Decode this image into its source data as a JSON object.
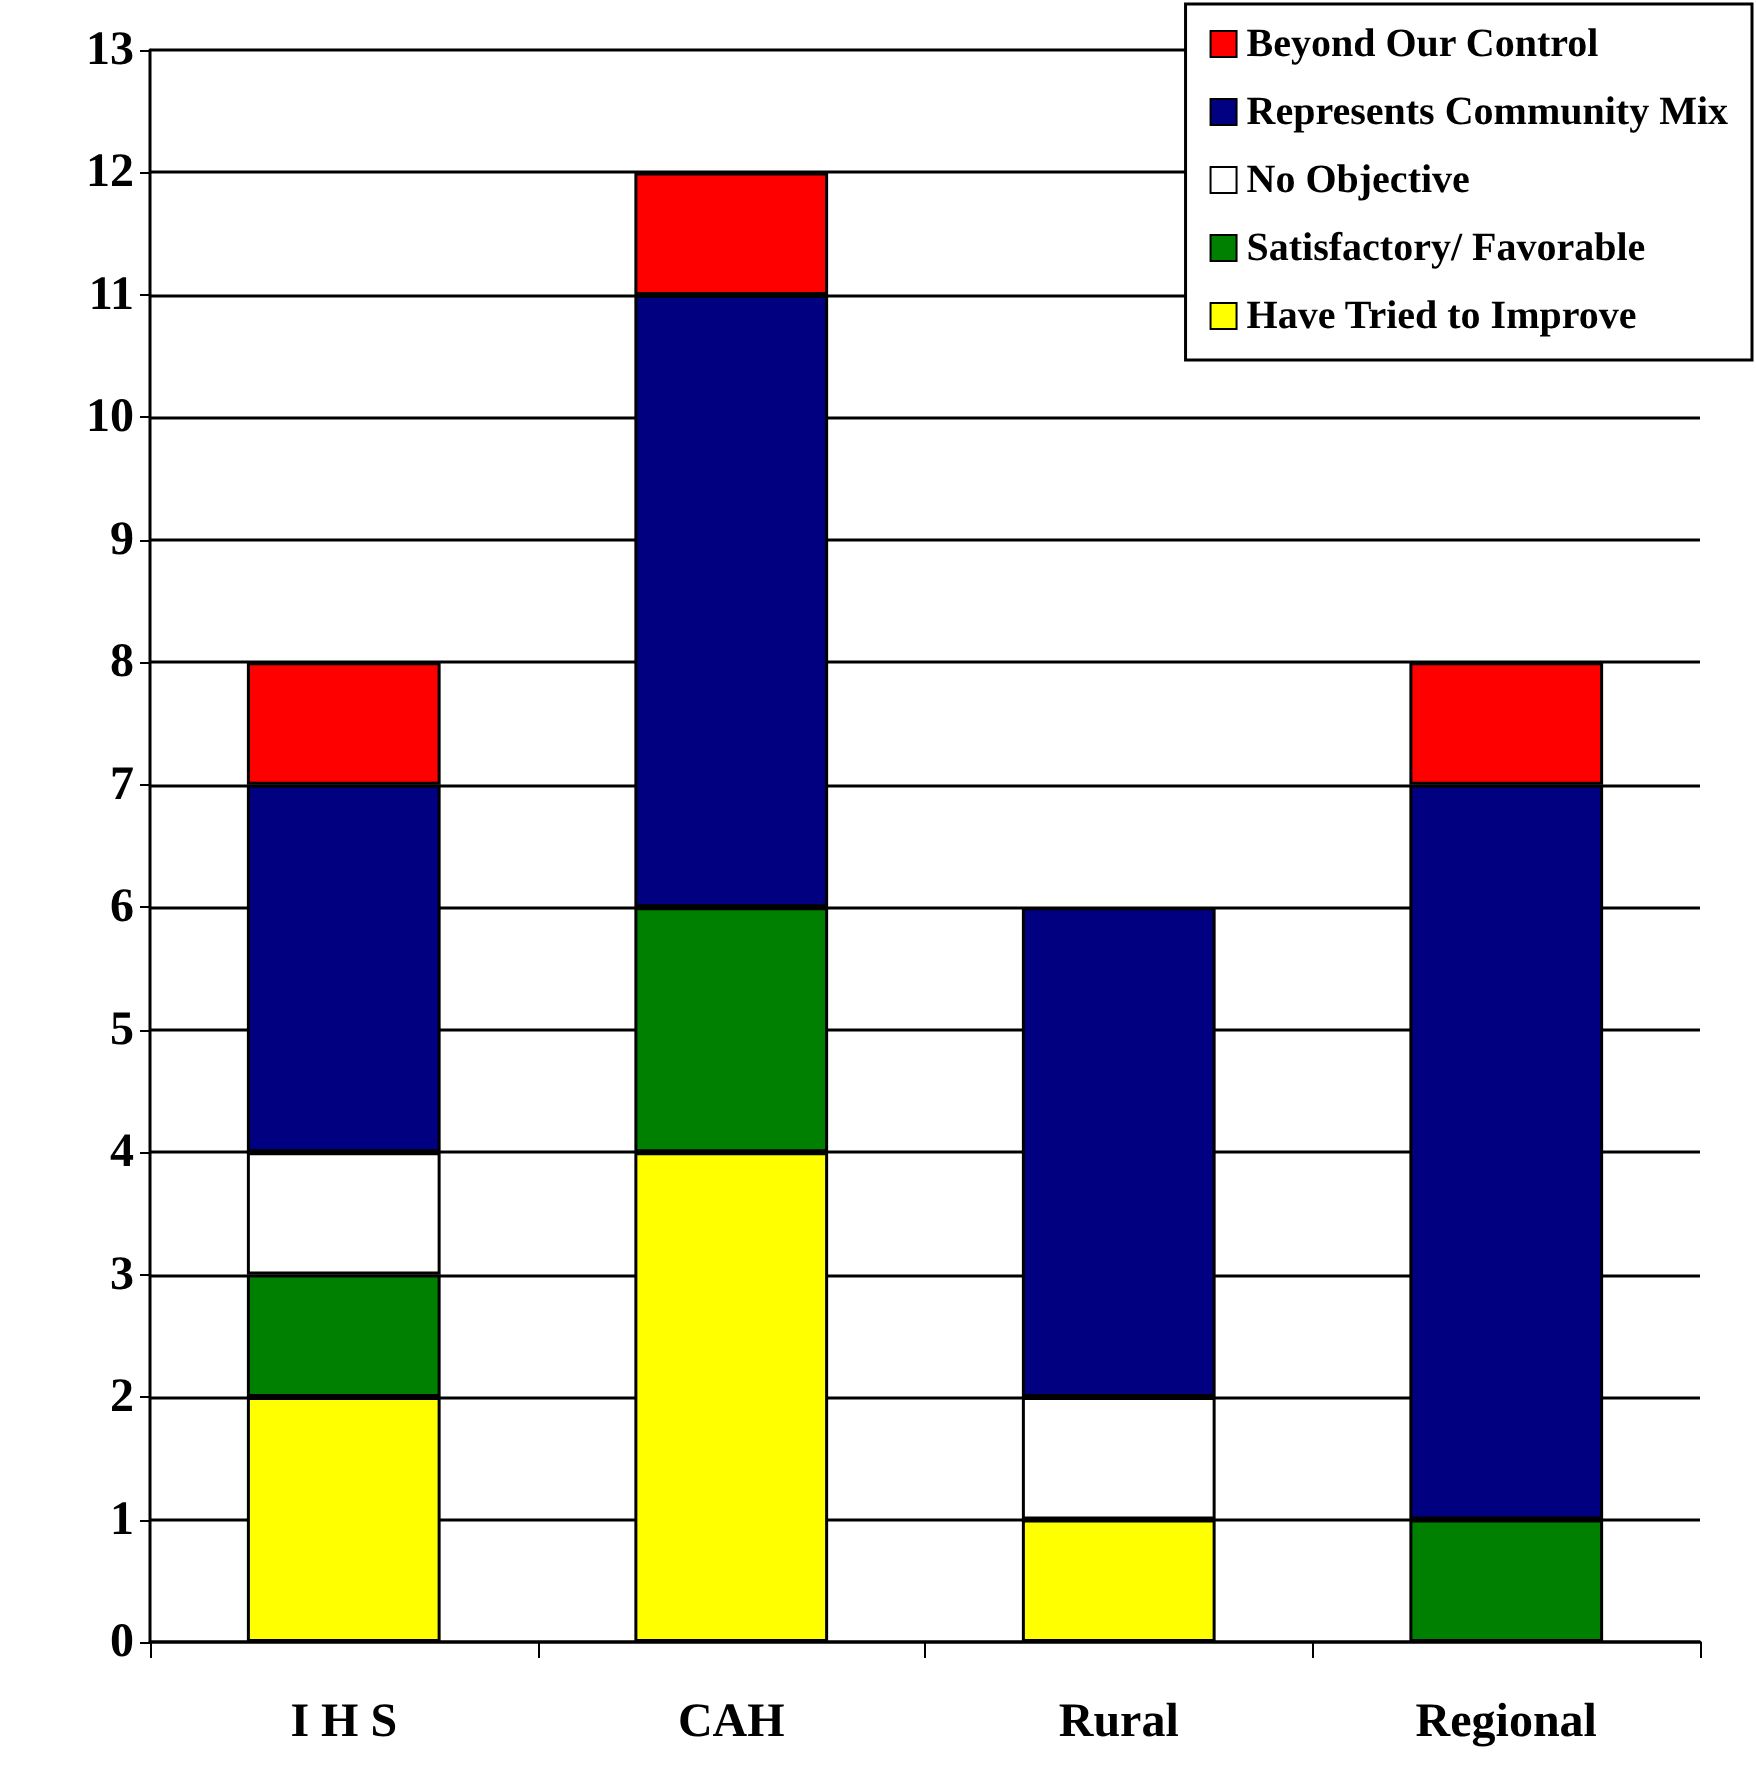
{
  "chart_data": {
    "type": "bar",
    "stacked": true,
    "categories": [
      "I H S",
      "CAH",
      "Rural",
      "Regional"
    ],
    "series": [
      {
        "name": "Have Tried to Improve",
        "color": "#ffff00",
        "values": [
          2,
          4,
          1,
          0
        ]
      },
      {
        "name": "Satisfactory/ Favorable",
        "color": "#008000",
        "values": [
          1,
          2,
          0,
          1
        ]
      },
      {
        "name": "No Objective",
        "color": "#ffffff",
        "values": [
          1,
          0,
          1,
          0
        ]
      },
      {
        "name": "Represents Community Mix",
        "color": "#000080",
        "values": [
          3,
          5,
          4,
          6
        ]
      },
      {
        "name": "Beyond Our Control",
        "color": "#ff0000",
        "values": [
          1,
          1,
          0,
          1
        ]
      }
    ],
    "ylim": [
      0,
      13
    ],
    "yticks": [
      0,
      1,
      2,
      3,
      4,
      5,
      6,
      7,
      8,
      9,
      10,
      11,
      12,
      13
    ],
    "grid": "y",
    "legend": "top right"
  }
}
